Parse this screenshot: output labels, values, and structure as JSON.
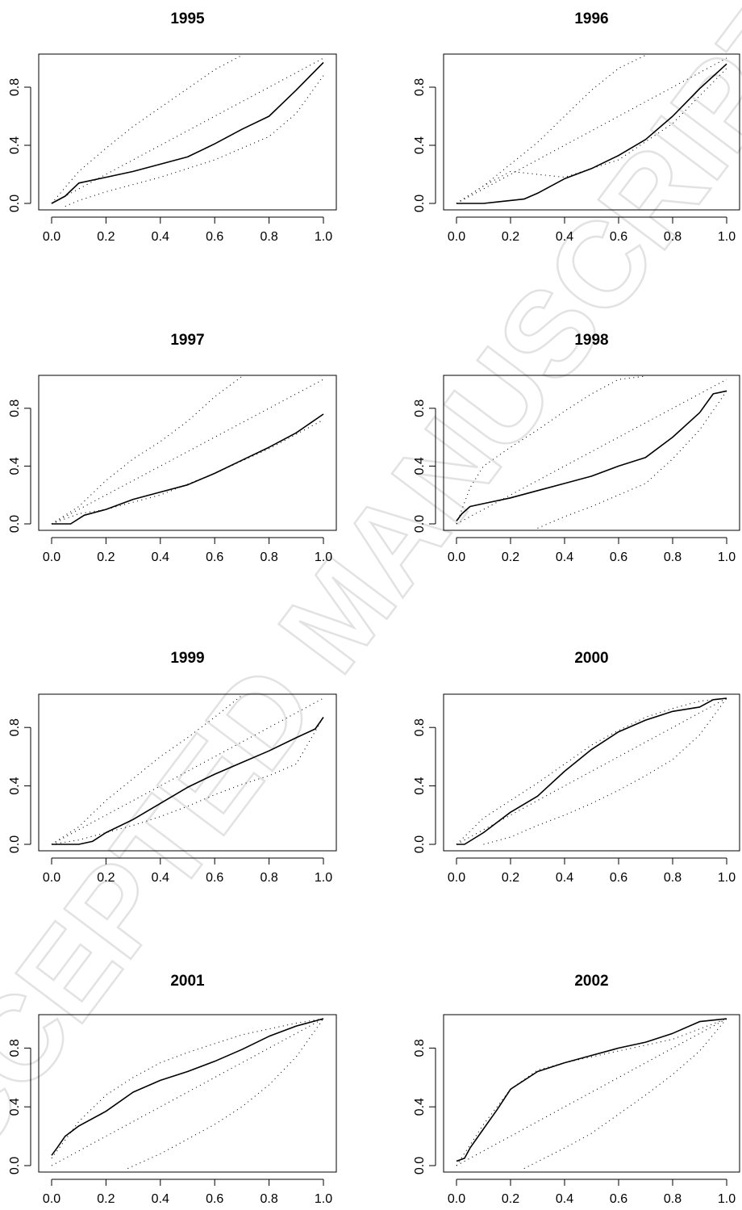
{
  "watermark": "ACCEPTED MANUSCRIPT",
  "chart_data": [
    {
      "type": "line",
      "title": "1995",
      "xlim": [
        0,
        1
      ],
      "ylim": [
        0,
        1
      ],
      "xticks": [
        "0.0",
        "0.2",
        "0.4",
        "0.6",
        "0.8",
        "1.0"
      ],
      "yticks": [
        "0.0",
        "0.4",
        "0.8"
      ],
      "series": [
        {
          "style": "solid",
          "x": [
            0,
            0.05,
            0.1,
            0.2,
            0.3,
            0.4,
            0.5,
            0.6,
            0.7,
            0.8,
            0.9,
            1.0
          ],
          "y": [
            0,
            0.05,
            0.14,
            0.18,
            0.22,
            0.27,
            0.32,
            0.41,
            0.51,
            0.6,
            0.78,
            0.97
          ]
        },
        {
          "style": "dotted",
          "x": [
            0,
            0.1,
            0.2,
            0.3,
            0.4,
            0.5,
            0.6,
            0.7
          ],
          "y": [
            0,
            0.22,
            0.38,
            0.53,
            0.66,
            0.79,
            0.92,
            1.02
          ]
        },
        {
          "style": "dotted",
          "x": [
            0,
            0.2,
            0.4,
            0.6,
            0.8,
            1.0
          ],
          "y": [
            0,
            0.2,
            0.4,
            0.6,
            0.8,
            1.0
          ]
        },
        {
          "style": "dotted",
          "x": [
            0.05,
            0.1,
            0.2,
            0.4,
            0.6,
            0.8,
            0.9,
            1.0
          ],
          "y": [
            -0.02,
            0.02,
            0.08,
            0.18,
            0.3,
            0.46,
            0.62,
            0.88
          ]
        }
      ]
    },
    {
      "type": "line",
      "title": "1996",
      "xlim": [
        0,
        1
      ],
      "ylim": [
        0,
        1
      ],
      "xticks": [
        "0.0",
        "0.2",
        "0.4",
        "0.6",
        "0.8",
        "1.0"
      ],
      "yticks": [
        "0.0",
        "0.4",
        "0.8"
      ],
      "series": [
        {
          "style": "solid",
          "x": [
            0,
            0.1,
            0.15,
            0.25,
            0.3,
            0.4,
            0.5,
            0.6,
            0.7,
            0.8,
            0.9,
            1.0
          ],
          "y": [
            0,
            0,
            0.01,
            0.03,
            0.07,
            0.17,
            0.24,
            0.33,
            0.44,
            0.6,
            0.79,
            0.96
          ]
        },
        {
          "style": "dotted",
          "x": [
            0,
            0.1,
            0.2,
            0.3,
            0.4,
            0.5,
            0.6,
            0.7
          ],
          "y": [
            0,
            0.12,
            0.27,
            0.42,
            0.6,
            0.78,
            0.93,
            1.02
          ]
        },
        {
          "style": "dotted",
          "x": [
            0,
            0.2,
            0.4,
            0.6,
            0.8,
            1.0
          ],
          "y": [
            0,
            0.2,
            0.4,
            0.6,
            0.8,
            1.0
          ]
        },
        {
          "style": "dotted",
          "x": [
            0,
            0.1,
            0.2,
            0.3,
            0.4,
            0.6,
            0.8,
            1.0
          ],
          "y": [
            0,
            0.12,
            0.22,
            0.2,
            0.18,
            0.3,
            0.55,
            0.93
          ]
        }
      ]
    },
    {
      "type": "line",
      "title": "1997",
      "xlim": [
        0,
        1
      ],
      "ylim": [
        0,
        1
      ],
      "xticks": [
        "0.0",
        "0.2",
        "0.4",
        "0.6",
        "0.8",
        "1.0"
      ],
      "yticks": [
        "0.0",
        "0.4",
        "0.8"
      ],
      "series": [
        {
          "style": "solid",
          "x": [
            0,
            0.07,
            0.12,
            0.2,
            0.3,
            0.4,
            0.5,
            0.6,
            0.7,
            0.8,
            0.9,
            1.0
          ],
          "y": [
            0,
            0,
            0.06,
            0.1,
            0.17,
            0.22,
            0.27,
            0.35,
            0.44,
            0.53,
            0.63,
            0.76
          ]
        },
        {
          "style": "dotted",
          "x": [
            0,
            0.1,
            0.2,
            0.3,
            0.4,
            0.5,
            0.6,
            0.7
          ],
          "y": [
            0,
            0.12,
            0.3,
            0.45,
            0.57,
            0.71,
            0.88,
            1.02
          ]
        },
        {
          "style": "dotted",
          "x": [
            0,
            0.2,
            0.4,
            0.6,
            0.8,
            1.0
          ],
          "y": [
            0,
            0.2,
            0.4,
            0.6,
            0.8,
            1.0
          ]
        },
        {
          "style": "dotted",
          "x": [
            0,
            0.1,
            0.2,
            0.4,
            0.6,
            0.8,
            1.0
          ],
          "y": [
            0,
            0.07,
            0.1,
            0.2,
            0.35,
            0.52,
            0.72
          ]
        }
      ]
    },
    {
      "type": "line",
      "title": "1998",
      "xlim": [
        0,
        1
      ],
      "ylim": [
        0,
        1
      ],
      "xticks": [
        "0.0",
        "0.2",
        "0.4",
        "0.6",
        "0.8",
        "1.0"
      ],
      "yticks": [
        "0.0",
        "0.4",
        "0.8"
      ],
      "series": [
        {
          "style": "solid",
          "x": [
            0,
            0.02,
            0.05,
            0.1,
            0.2,
            0.3,
            0.4,
            0.5,
            0.6,
            0.7,
            0.8,
            0.9,
            0.95,
            1.0
          ],
          "y": [
            0.02,
            0.07,
            0.12,
            0.14,
            0.18,
            0.23,
            0.28,
            0.33,
            0.4,
            0.46,
            0.6,
            0.77,
            0.9,
            0.92
          ]
        },
        {
          "style": "dotted",
          "x": [
            0,
            0.05,
            0.1,
            0.2,
            0.3,
            0.4,
            0.5,
            0.6,
            0.7
          ],
          "y": [
            0,
            0.25,
            0.4,
            0.53,
            0.65,
            0.78,
            0.9,
            1.0,
            1.03
          ]
        },
        {
          "style": "dotted",
          "x": [
            0,
            0.2,
            0.4,
            0.6,
            0.8,
            1.0
          ],
          "y": [
            0,
            0.2,
            0.4,
            0.6,
            0.8,
            1.0
          ]
        },
        {
          "style": "dotted",
          "x": [
            0.3,
            0.4,
            0.5,
            0.6,
            0.7,
            0.8,
            0.9,
            1.0
          ],
          "y": [
            -0.03,
            0.05,
            0.12,
            0.2,
            0.28,
            0.45,
            0.65,
            0.92
          ]
        }
      ]
    },
    {
      "type": "line",
      "title": "1999",
      "xlim": [
        0,
        1
      ],
      "ylim": [
        0,
        1
      ],
      "xticks": [
        "0.0",
        "0.2",
        "0.4",
        "0.6",
        "0.8",
        "1.0"
      ],
      "yticks": [
        "0.0",
        "0.4",
        "0.8"
      ],
      "series": [
        {
          "style": "solid",
          "x": [
            0,
            0.1,
            0.15,
            0.2,
            0.3,
            0.4,
            0.5,
            0.6,
            0.7,
            0.8,
            0.9,
            0.97,
            1.0
          ],
          "y": [
            0,
            0,
            0.02,
            0.08,
            0.17,
            0.28,
            0.39,
            0.48,
            0.56,
            0.64,
            0.73,
            0.79,
            0.87
          ]
        },
        {
          "style": "dotted",
          "x": [
            0,
            0.1,
            0.2,
            0.3,
            0.4,
            0.5,
            0.6,
            0.7
          ],
          "y": [
            0,
            0.12,
            0.3,
            0.45,
            0.6,
            0.73,
            0.87,
            1.02
          ]
        },
        {
          "style": "dotted",
          "x": [
            0,
            0.2,
            0.4,
            0.6,
            0.8,
            1.0
          ],
          "y": [
            0,
            0.2,
            0.4,
            0.6,
            0.8,
            1.0
          ]
        },
        {
          "style": "dotted",
          "x": [
            0,
            0.1,
            0.2,
            0.3,
            0.4,
            0.5,
            0.6,
            0.7,
            0.8,
            0.9,
            1.0
          ],
          "y": [
            0,
            0.03,
            0.08,
            0.13,
            0.19,
            0.26,
            0.34,
            0.41,
            0.47,
            0.55,
            0.87
          ]
        }
      ]
    },
    {
      "type": "line",
      "title": "2000",
      "xlim": [
        0,
        1
      ],
      "ylim": [
        0,
        1
      ],
      "xticks": [
        "0.0",
        "0.2",
        "0.4",
        "0.6",
        "0.8",
        "1.0"
      ],
      "yticks": [
        "0.0",
        "0.4",
        "0.8"
      ],
      "series": [
        {
          "style": "solid",
          "x": [
            0,
            0.03,
            0.1,
            0.2,
            0.3,
            0.4,
            0.5,
            0.6,
            0.7,
            0.8,
            0.9,
            0.95,
            1.0
          ],
          "y": [
            0,
            0,
            0.08,
            0.22,
            0.33,
            0.5,
            0.65,
            0.77,
            0.85,
            0.91,
            0.94,
            0.99,
            1.0
          ]
        },
        {
          "style": "dotted",
          "x": [
            0,
            0.1,
            0.2,
            0.3,
            0.4,
            0.5,
            0.6,
            0.7,
            0.8,
            0.9,
            1.0
          ],
          "y": [
            0,
            0.18,
            0.3,
            0.42,
            0.55,
            0.68,
            0.78,
            0.87,
            0.93,
            0.98,
            1.0
          ]
        },
        {
          "style": "dotted",
          "x": [
            0,
            0.2,
            0.4,
            0.6,
            0.8,
            1.0
          ],
          "y": [
            0,
            0.2,
            0.4,
            0.6,
            0.8,
            1.0
          ]
        },
        {
          "style": "dotted",
          "x": [
            0.1,
            0.2,
            0.3,
            0.4,
            0.5,
            0.6,
            0.7,
            0.8,
            0.9,
            1.0
          ],
          "y": [
            0,
            0.05,
            0.13,
            0.2,
            0.28,
            0.37,
            0.47,
            0.58,
            0.75,
            1.0
          ]
        }
      ]
    },
    {
      "type": "line",
      "title": "2001",
      "xlim": [
        0,
        1
      ],
      "ylim": [
        0,
        1
      ],
      "xticks": [
        "0.0",
        "0.2",
        "0.4",
        "0.6",
        "0.8",
        "1.0"
      ],
      "yticks": [
        "0.0",
        "0.4",
        "0.8"
      ],
      "series": [
        {
          "style": "solid",
          "x": [
            0,
            0.02,
            0.05,
            0.1,
            0.2,
            0.3,
            0.4,
            0.5,
            0.6,
            0.7,
            0.8,
            0.9,
            1.0
          ],
          "y": [
            0.07,
            0.12,
            0.2,
            0.27,
            0.37,
            0.5,
            0.58,
            0.64,
            0.71,
            0.79,
            0.88,
            0.95,
            1.0
          ]
        },
        {
          "style": "dotted",
          "x": [
            0,
            0.1,
            0.2,
            0.3,
            0.4,
            0.5,
            0.6,
            0.7,
            0.8,
            0.9,
            1.0
          ],
          "y": [
            0.05,
            0.3,
            0.48,
            0.6,
            0.7,
            0.77,
            0.83,
            0.89,
            0.93,
            0.97,
            1.0
          ]
        },
        {
          "style": "dotted",
          "x": [
            0,
            0.2,
            0.4,
            0.6,
            0.8,
            1.0
          ],
          "y": [
            0,
            0.2,
            0.4,
            0.6,
            0.8,
            1.0
          ]
        },
        {
          "style": "dotted",
          "x": [
            0.28,
            0.4,
            0.5,
            0.6,
            0.7,
            0.8,
            0.9,
            1.0
          ],
          "y": [
            -0.02,
            0.08,
            0.18,
            0.28,
            0.4,
            0.55,
            0.74,
            1.0
          ]
        }
      ]
    },
    {
      "type": "line",
      "title": "2002",
      "xlim": [
        0,
        1
      ],
      "ylim": [
        0,
        1
      ],
      "xticks": [
        "0.0",
        "0.2",
        "0.4",
        "0.6",
        "0.8",
        "1.0"
      ],
      "yticks": [
        "0.0",
        "0.4",
        "0.8"
      ],
      "series": [
        {
          "style": "solid",
          "x": [
            0,
            0.03,
            0.05,
            0.1,
            0.15,
            0.2,
            0.3,
            0.4,
            0.5,
            0.6,
            0.7,
            0.8,
            0.9,
            1.0
          ],
          "y": [
            0.03,
            0.05,
            0.12,
            0.25,
            0.38,
            0.52,
            0.64,
            0.7,
            0.75,
            0.8,
            0.84,
            0.9,
            0.98,
            1.0
          ]
        },
        {
          "style": "dotted",
          "x": [
            0,
            0.1,
            0.2,
            0.3,
            0.4,
            0.5,
            0.6,
            0.7,
            0.8,
            0.9,
            1.0
          ],
          "y": [
            0,
            0.28,
            0.52,
            0.65,
            0.7,
            0.74,
            0.78,
            0.82,
            0.86,
            0.93,
            1.0
          ]
        },
        {
          "style": "dotted",
          "x": [
            0,
            0.2,
            0.4,
            0.6,
            0.8,
            1.0
          ],
          "y": [
            0,
            0.2,
            0.4,
            0.6,
            0.8,
            1.0
          ]
        },
        {
          "style": "dotted",
          "x": [
            0.25,
            0.4,
            0.5,
            0.6,
            0.7,
            0.8,
            0.9,
            1.0
          ],
          "y": [
            -0.02,
            0.12,
            0.22,
            0.35,
            0.48,
            0.62,
            0.78,
            1.0
          ]
        }
      ]
    }
  ]
}
